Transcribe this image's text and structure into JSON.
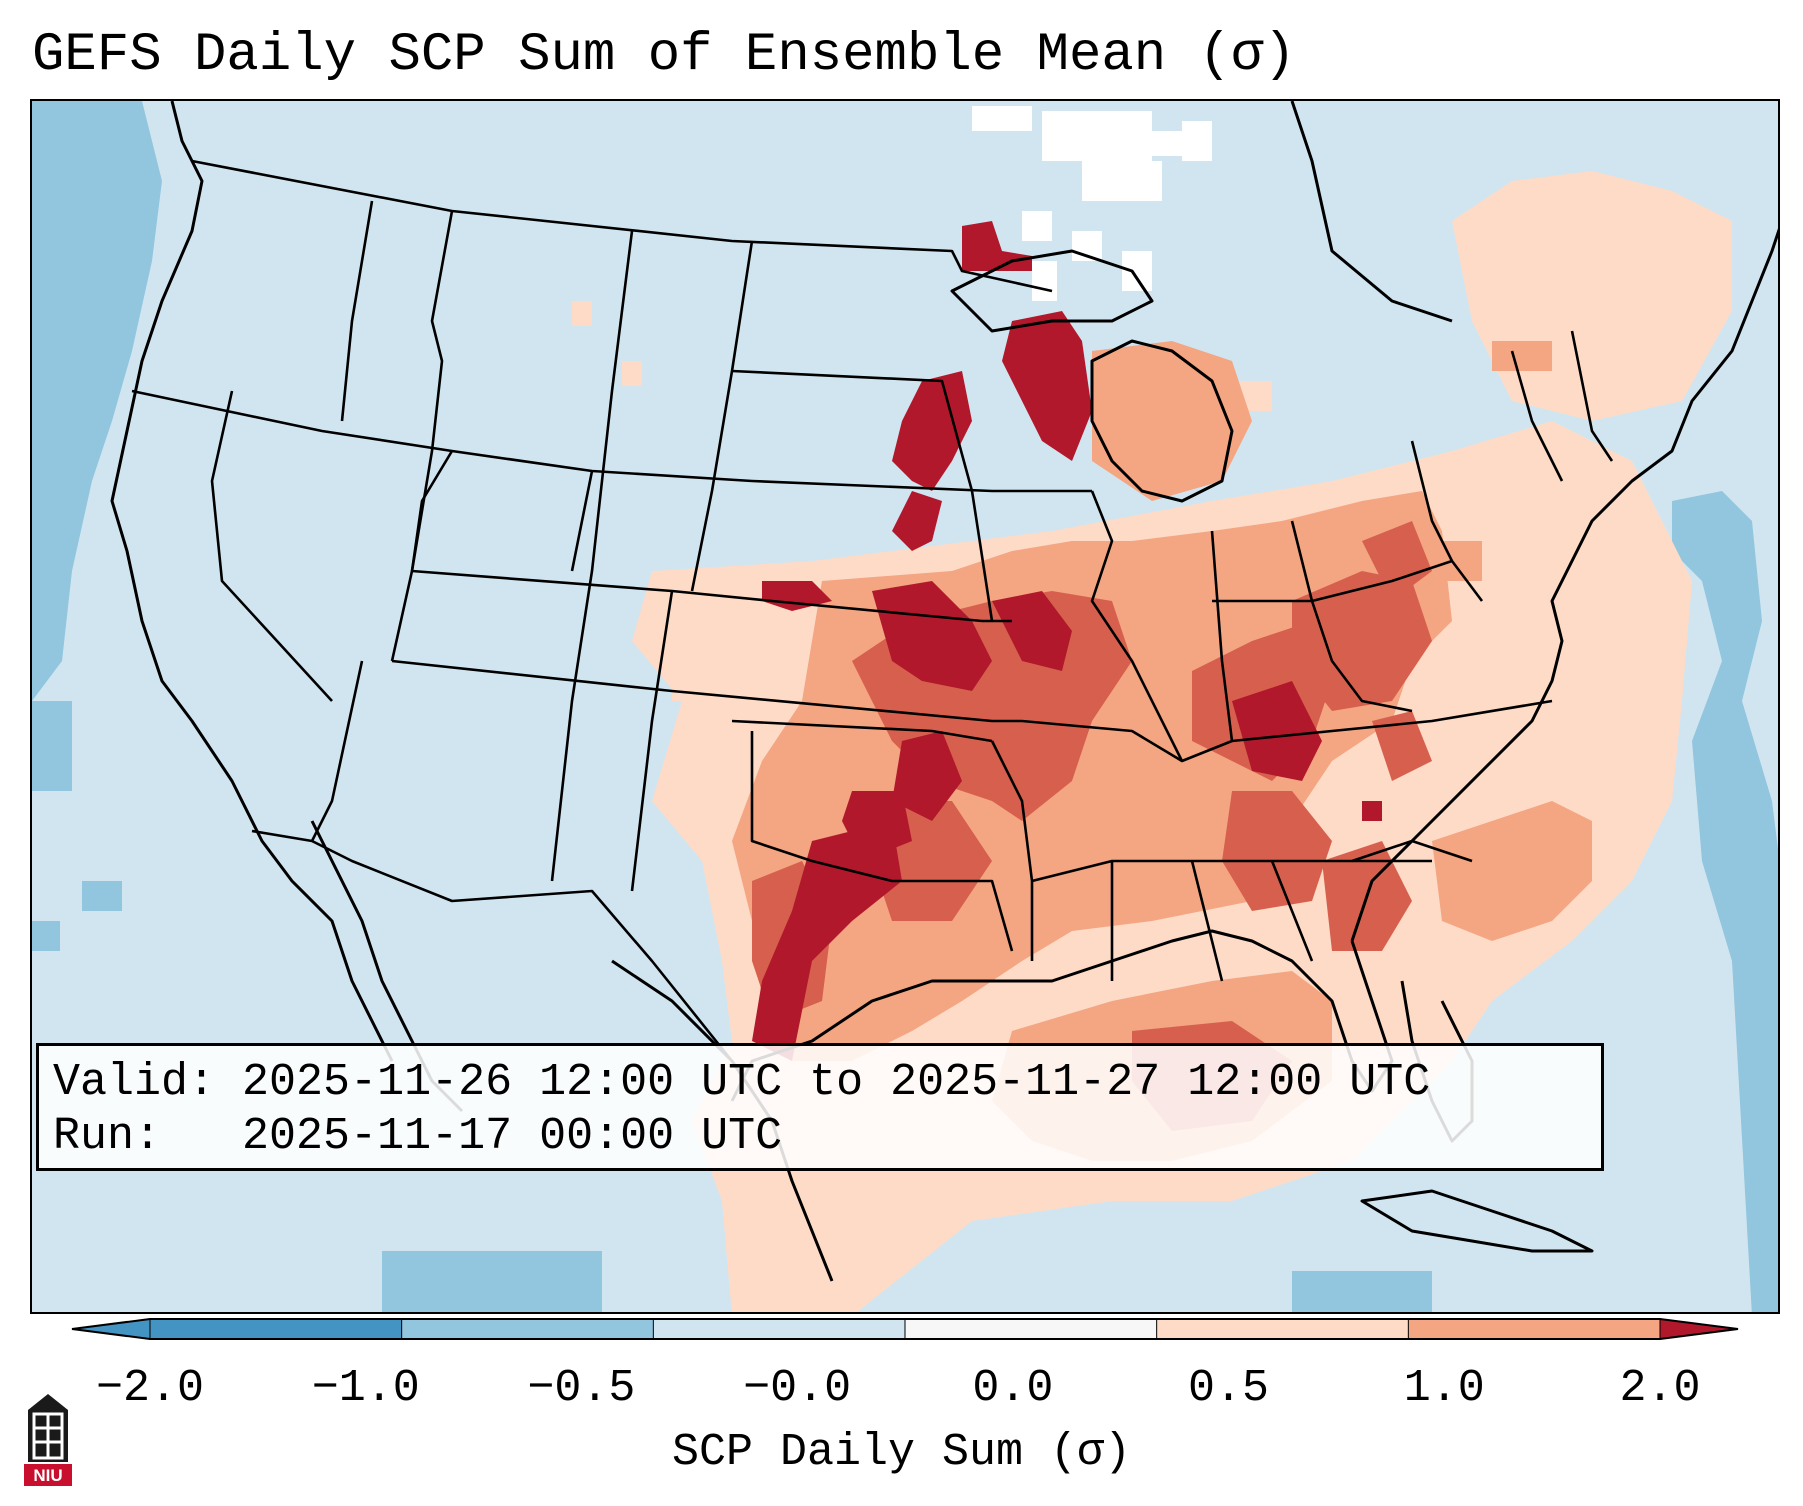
{
  "title": "GEFS Daily SCP Sum of Ensemble Mean (σ)",
  "info": {
    "valid_label": "Valid:",
    "valid_value": "2025-11-26 12:00 UTC to 2025-11-27 12:00 UTC",
    "run_label": "Run:",
    "run_value": "2025-11-17 00:00 UTC"
  },
  "colorbar": {
    "title": "SCP Daily Sum (σ)",
    "ticks": [
      "−2.0",
      "−1.0",
      "−0.5",
      "−0.0",
      "0.0",
      "0.5",
      "1.0",
      "2.0"
    ],
    "colors": [
      "#4393c3",
      "#92c5de",
      "#d1e5f0",
      "#f7f7f7",
      "#fddbc7",
      "#f4a582",
      "#d6604d",
      "#b2182b"
    ]
  },
  "legend_colors": {
    "ocean_background": "#d1e5f0",
    "pacific_negative": "#92c5de",
    "missing": "#ffffff",
    "state_borders": "#000000"
  },
  "logo": {
    "text": "NIU",
    "color": "#c8102e"
  }
}
